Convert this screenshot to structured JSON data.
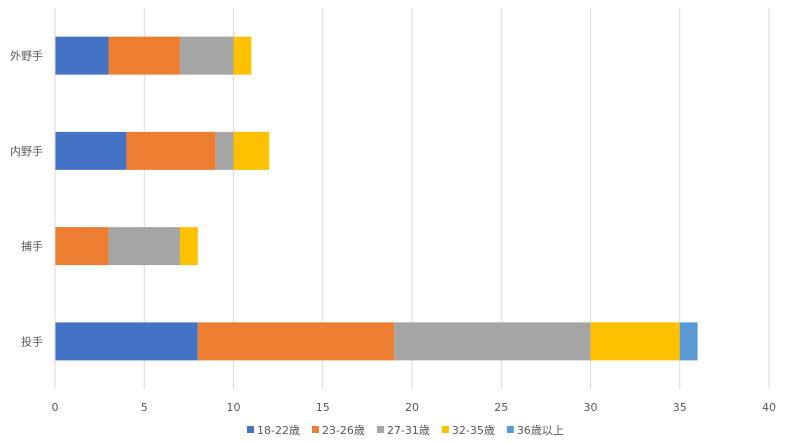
{
  "chart_data": {
    "type": "bar",
    "orientation": "horizontal",
    "stacked": true,
    "categories": [
      "外野手",
      "内野手",
      "捕手",
      "投手"
    ],
    "series": [
      {
        "name": "18-22歳",
        "color": "#4472C4",
        "values": [
          3,
          4,
          0,
          8
        ]
      },
      {
        "name": "23-26歳",
        "color": "#ED7D31",
        "values": [
          4,
          5,
          3,
          11
        ]
      },
      {
        "name": "27-31歳",
        "color": "#A5A5A5",
        "values": [
          3,
          1,
          4,
          11
        ]
      },
      {
        "name": "32-35歳",
        "color": "#FFC000",
        "values": [
          1,
          2,
          1,
          5
        ]
      },
      {
        "name": "36歳以上",
        "color": "#5B9BD5",
        "values": [
          0,
          0,
          0,
          1
        ]
      }
    ],
    "xlim": [
      0,
      40
    ],
    "xticks": [
      0,
      5,
      10,
      15,
      20,
      25,
      30,
      35,
      40
    ],
    "grid": true,
    "legend_position": "bottom"
  }
}
